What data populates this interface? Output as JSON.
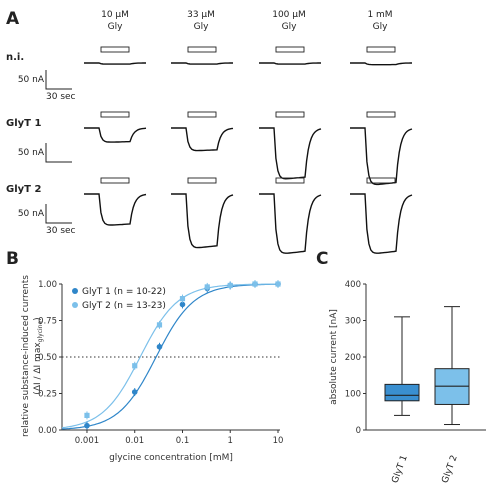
{
  "panel_a": {
    "letter": "A",
    "conditions": [
      {
        "conc": "10 µM",
        "sub": "Gly"
      },
      {
        "conc": "33 µM",
        "sub": "Gly"
      },
      {
        "conc": "100 µM",
        "sub": "Gly"
      },
      {
        "conc": "1 mM",
        "sub": "Gly"
      }
    ],
    "rows": [
      {
        "label": "n.i.",
        "scale_current": "50 nA",
        "scale_time": "30 sec",
        "amplitudes": [
          0.02,
          0.02,
          0.02,
          0.03
        ]
      },
      {
        "label": "GlyT 1",
        "scale_current": "50 nA",
        "scale_time": "",
        "amplitudes": [
          0.25,
          0.4,
          0.9,
          1.0
        ]
      },
      {
        "label": "GlyT 2",
        "scale_current": "50 nA",
        "scale_time": "30 sec",
        "amplitudes": [
          0.55,
          0.95,
          1.05,
          1.05
        ]
      }
    ],
    "trace_color": "#111111"
  },
  "panel_b": {
    "letter": "B",
    "ylabel_line1": "relative substance-induced currents",
    "ylabel_line2": "(ΔI / ΔI max",
    "ylabel_sub": "glycine",
    "ylabel_end": ")",
    "xlabel": "glycine concentration [mM]",
    "yticks": [
      "0.00",
      "0.25",
      "0.50",
      "0.75",
      "1.00"
    ],
    "xticks": [
      "0.001",
      "0.01",
      "0.1",
      "1",
      "10"
    ],
    "legend": [
      {
        "label": "GlyT 1 (n = 10-22)",
        "color": "#2f86c9"
      },
      {
        "label": "GlyT 2 (n = 13-23)",
        "color": "#7cc0ea"
      }
    ]
  },
  "panel_c": {
    "letter": "C",
    "ylabel": "absolute current [nA]",
    "yticks": [
      "0",
      "100",
      "200",
      "300",
      "400"
    ],
    "categories": [
      "GlyT 1",
      "GlyT 2"
    ]
  },
  "chart_data": [
    {
      "type": "scatter",
      "title": "",
      "xlabel": "glycine concentration [mM]",
      "ylabel": "relative substance-induced currents (ΔI / ΔI max glycine)",
      "xscale": "log",
      "xlim": [
        0.0003,
        10
      ],
      "ylim": [
        0,
        1
      ],
      "reference_line": 0.5,
      "series": [
        {
          "name": "GlyT 1 (n = 10-22)",
          "color": "#2f86c9",
          "x": [
            0.001,
            0.01,
            0.033,
            0.1,
            0.33,
            1,
            3.3,
            10
          ],
          "y": [
            0.03,
            0.26,
            0.57,
            0.86,
            0.97,
            0.99,
            1.0,
            1.0
          ],
          "ec50": 0.028
        },
        {
          "name": "GlyT 2 (n = 13-23)",
          "color": "#7cc0ea",
          "x": [
            0.001,
            0.01,
            0.033,
            0.1,
            0.33,
            1,
            3.3,
            10
          ],
          "y": [
            0.1,
            0.44,
            0.72,
            0.9,
            0.98,
            0.99,
            1.0,
            1.0
          ],
          "ec50": 0.013
        }
      ]
    },
    {
      "type": "box",
      "title": "",
      "ylabel": "absolute current [nA]",
      "ylim": [
        0,
        400
      ],
      "categories": [
        "GlyT 1",
        "GlyT 2"
      ],
      "series": [
        {
          "name": "GlyT 1",
          "color": "#3a8fd0",
          "min": 40,
          "q1": 80,
          "median": 95,
          "q3": 125,
          "max": 310
        },
        {
          "name": "GlyT 2",
          "color": "#7cc0ea",
          "min": 15,
          "q1": 70,
          "median": 120,
          "q3": 168,
          "max": 338
        }
      ]
    }
  ]
}
